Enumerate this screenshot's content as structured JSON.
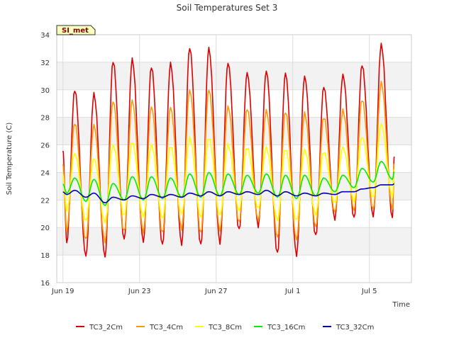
{
  "chart_data": {
    "type": "line",
    "title": "Soil Temperatures Set 3",
    "xlabel": "Time",
    "ylabel": "Soil Temperature (C)",
    "ylim": [
      16,
      34
    ],
    "yticks": [
      16,
      18,
      20,
      22,
      24,
      26,
      28,
      30,
      32,
      34
    ],
    "xlim": [
      "Jun 19",
      "Jul 7"
    ],
    "xticks": [
      {
        "label": "Jun 19",
        "day": 0
      },
      {
        "label": "Jun 23",
        "day": 4
      },
      {
        "label": "Jun 27",
        "day": 8
      },
      {
        "label": "Jul 1",
        "day": 12
      },
      {
        "label": "Jul 5",
        "day": 16
      }
    ],
    "grid": true,
    "legend_position": "bottom",
    "site_badge": "SI_met",
    "series": [
      {
        "name": "TC3_2Cm",
        "color": "#dd0000",
        "max": [
          30.0,
          29.7,
          32.1,
          32.2,
          31.7,
          31.9,
          33.1,
          33.0,
          32.0,
          31.2,
          31.4,
          31.2,
          31.0,
          30.2,
          31.1,
          31.8,
          33.3,
          33.4
        ],
        "min": [
          18.9,
          17.9,
          17.9,
          19.1,
          19.0,
          18.7,
          18.8,
          18.7,
          18.9,
          19.8,
          20.1,
          18.1,
          18.0,
          19.4,
          20.6,
          20.7,
          20.8,
          20.7
        ]
      },
      {
        "name": "TC3_4Cm",
        "color": "#ff9900",
        "max": [
          27.6,
          27.4,
          29.2,
          29.2,
          28.8,
          28.7,
          30.0,
          30.0,
          28.8,
          28.6,
          28.5,
          28.4,
          28.3,
          28.0,
          28.5,
          29.3,
          30.5,
          30.6
        ],
        "min": [
          19.8,
          19.1,
          19.0,
          19.7,
          19.7,
          19.6,
          19.9,
          19.6,
          19.8,
          20.4,
          20.5,
          19.3,
          19.1,
          20.1,
          21.1,
          21.3,
          21.3,
          21.4
        ]
      },
      {
        "name": "TC3_8Cm",
        "color": "#ffff00",
        "max": [
          25.4,
          25.0,
          26.0,
          26.2,
          26.0,
          25.9,
          26.5,
          26.5,
          26.0,
          25.8,
          25.8,
          25.7,
          25.6,
          25.5,
          25.8,
          26.6,
          27.5,
          27.8
        ],
        "min": [
          21.3,
          20.5,
          20.4,
          20.9,
          20.8,
          20.7,
          21.0,
          20.8,
          20.9,
          21.3,
          21.4,
          20.6,
          20.5,
          21.0,
          21.8,
          22.0,
          22.2,
          22.3
        ]
      },
      {
        "name": "TC3_16Cm",
        "color": "#00ee00",
        "max": [
          23.6,
          23.5,
          23.2,
          23.7,
          23.7,
          23.6,
          23.9,
          24.0,
          23.9,
          23.8,
          23.9,
          23.8,
          23.8,
          23.6,
          23.8,
          24.3,
          24.8,
          25.1
        ],
        "min": [
          22.5,
          21.9,
          21.6,
          22.0,
          22.0,
          22.1,
          22.2,
          22.2,
          22.3,
          22.4,
          22.5,
          22.2,
          22.1,
          22.3,
          22.6,
          22.9,
          23.3,
          23.5
        ]
      },
      {
        "name": "TC3_32Cm",
        "color": "#0000aa",
        "max": [
          22.7,
          22.5,
          22.2,
          22.3,
          22.4,
          22.4,
          22.5,
          22.6,
          22.6,
          22.6,
          22.7,
          22.6,
          22.5,
          22.5,
          22.6,
          22.8,
          23.1,
          23.3
        ],
        "min": [
          22.4,
          22.2,
          21.8,
          22.0,
          22.1,
          22.2,
          22.2,
          22.3,
          22.3,
          22.4,
          22.4,
          22.3,
          22.3,
          22.3,
          22.4,
          22.6,
          22.9,
          23.1
        ]
      }
    ]
  }
}
